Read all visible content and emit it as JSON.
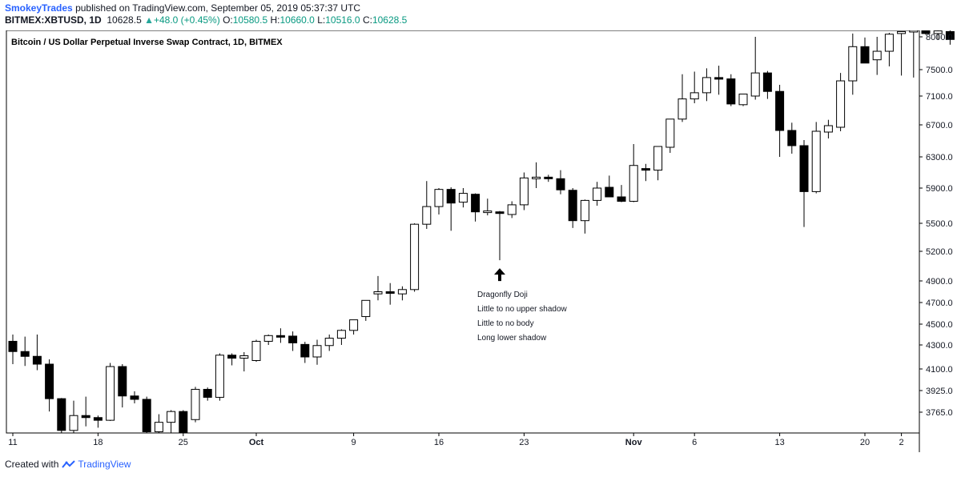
{
  "header": {
    "author": "SmokeyTrades",
    "published": "published on TradingView.com, September 05, 2019 05:37:37 UTC",
    "symbol": "BITMEX:XBTUSD, 1D",
    "last": "10628.5",
    "change": "+48.0 (+0.45%)",
    "o_label": "O:",
    "o_val": "10580.5",
    "h_label": "H:",
    "h_val": "10660.0",
    "l_label": "L:",
    "l_val": "10516.0",
    "c_label": "C:",
    "c_val": "10628.5"
  },
  "footer": {
    "created_with": "Created with",
    "brand": "TradingView"
  },
  "colors": {
    "up_fill": "#ffffff",
    "down_fill": "#000000",
    "wick": "#000000",
    "accent": "#2962ff",
    "positive": "#089981"
  },
  "chart_data": {
    "type": "candlestick",
    "title": "Bitcoin / US Dollar Perpetual Inverse Swap Contract, 1D, BITMEX",
    "y_ticks": [
      "8000.0",
      "7500.0",
      "7100.0",
      "6700.0",
      "6300.0",
      "5900.0",
      "5500.0",
      "5200.0",
      "4900.0",
      "4700.0",
      "4500.0",
      "4300.0",
      "4100.0",
      "3925.0",
      "3765.0"
    ],
    "x_ticks": [
      {
        "label": "11",
        "day": 0
      },
      {
        "label": "18",
        "day": 7
      },
      {
        "label": "25",
        "day": 14
      },
      {
        "label": "Oct",
        "day": 20
      },
      {
        "label": "9",
        "day": 28
      },
      {
        "label": "16",
        "day": 35
      },
      {
        "label": "23",
        "day": 42
      },
      {
        "label": "Nov",
        "day": 51
      },
      {
        "label": "6",
        "day": 56
      },
      {
        "label": "13",
        "day": 63
      },
      {
        "label": "20",
        "day": 70
      },
      {
        "label": "2",
        "day": 73
      }
    ],
    "ylim": [
      3600,
      8100
    ],
    "candles": [
      [
        4335,
        4400,
        4140,
        4245
      ],
      [
        4245,
        4380,
        4125,
        4205
      ],
      [
        4205,
        4400,
        4090,
        4140
      ],
      [
        4140,
        4180,
        3770,
        3865
      ],
      [
        3865,
        3870,
        3560,
        3630
      ],
      [
        3630,
        3850,
        3600,
        3740
      ],
      [
        3740,
        3880,
        3660,
        3725
      ],
      [
        3725,
        3740,
        3650,
        3705
      ],
      [
        3705,
        4150,
        3700,
        4120
      ],
      [
        4120,
        4140,
        3800,
        3885
      ],
      [
        3885,
        3920,
        3830,
        3860
      ],
      [
        3860,
        3880,
        3520,
        3620
      ],
      [
        3620,
        3750,
        3530,
        3690
      ],
      [
        3690,
        3780,
        3600,
        3770
      ],
      [
        3770,
        3780,
        3520,
        3590
      ],
      [
        3710,
        3955,
        3690,
        3935
      ],
      [
        3935,
        3950,
        3850,
        3875
      ],
      [
        3875,
        4230,
        3850,
        4215
      ],
      [
        4215,
        4230,
        4130,
        4190
      ],
      [
        4190,
        4240,
        4080,
        4210
      ],
      [
        4170,
        4350,
        4160,
        4335
      ],
      [
        4335,
        4400,
        4300,
        4390
      ],
      [
        4390,
        4460,
        4320,
        4375
      ],
      [
        4385,
        4430,
        4250,
        4320
      ],
      [
        4305,
        4330,
        4150,
        4200
      ],
      [
        4200,
        4350,
        4135,
        4295
      ],
      [
        4295,
        4400,
        4250,
        4365
      ],
      [
        4365,
        4450,
        4300,
        4440
      ],
      [
        4440,
        4540,
        4400,
        4540
      ],
      [
        4570,
        4720,
        4530,
        4720
      ],
      [
        4780,
        4950,
        4720,
        4800
      ],
      [
        4800,
        4880,
        4680,
        4790
      ],
      [
        4780,
        4850,
        4720,
        4820
      ],
      [
        4820,
        5500,
        4800,
        5490
      ],
      [
        5490,
        5990,
        5440,
        5690
      ],
      [
        5690,
        5900,
        5600,
        5885
      ],
      [
        5885,
        5910,
        5420,
        5730
      ],
      [
        5740,
        5900,
        5680,
        5840
      ],
      [
        5830,
        5840,
        5520,
        5630
      ],
      [
        5635,
        5780,
        5590,
        5640
      ],
      [
        5630,
        5640,
        5110,
        5625
      ],
      [
        5600,
        5750,
        5560,
        5710
      ],
      [
        5710,
        6100,
        5650,
        6030
      ],
      [
        6030,
        6230,
        5900,
        6040
      ],
      [
        6040,
        6070,
        5980,
        6020
      ],
      [
        6020,
        6130,
        5830,
        5880
      ],
      [
        5875,
        5900,
        5450,
        5530
      ],
      [
        5530,
        5770,
        5390,
        5760
      ],
      [
        5760,
        5980,
        5700,
        5900
      ],
      [
        5910,
        6060,
        5800,
        5800
      ],
      [
        5800,
        5940,
        5740,
        5750
      ],
      [
        5750,
        6460,
        5740,
        6190
      ],
      [
        6150,
        6210,
        5990,
        6140
      ],
      [
        6130,
        6430,
        6000,
        6430
      ],
      [
        6420,
        6780,
        6350,
        6780
      ],
      [
        6780,
        7430,
        6740,
        7060
      ],
      [
        7060,
        7470,
        7000,
        7150
      ],
      [
        7150,
        7520,
        7030,
        7380
      ],
      [
        7380,
        7560,
        7120,
        7360
      ],
      [
        7360,
        7430,
        6960,
        6990
      ],
      [
        6980,
        7120,
        6960,
        7130
      ],
      [
        7100,
        8000,
        7050,
        7450
      ],
      [
        7450,
        7480,
        7060,
        7170
      ],
      [
        7170,
        7270,
        6300,
        6630
      ],
      [
        6630,
        6730,
        6340,
        6440
      ],
      [
        6440,
        6510,
        5460,
        5860
      ],
      [
        5860,
        6740,
        5840,
        6620
      ],
      [
        6610,
        6770,
        6530,
        6690
      ],
      [
        6670,
        7450,
        6620,
        7330
      ],
      [
        7330,
        8050,
        7120,
        7850
      ],
      [
        7850,
        7990,
        7620,
        7600
      ],
      [
        7650,
        8000,
        7420,
        7780
      ],
      [
        7780,
        8060,
        7550,
        8040
      ],
      [
        8050,
        8060,
        7410,
        8080
      ],
      [
        8080,
        8100,
        7380,
        8100
      ],
      [
        8110,
        8120,
        8030,
        8050
      ],
      [
        8050,
        8100,
        7960,
        8090
      ],
      [
        8080,
        8120,
        7880,
        7960
      ]
    ],
    "annotation": {
      "day": 40,
      "price": 5110,
      "lines": [
        "Dragonfly Doji",
        "Little to no upper shadow",
        "Little to no body",
        "Long lower shadow"
      ]
    }
  }
}
